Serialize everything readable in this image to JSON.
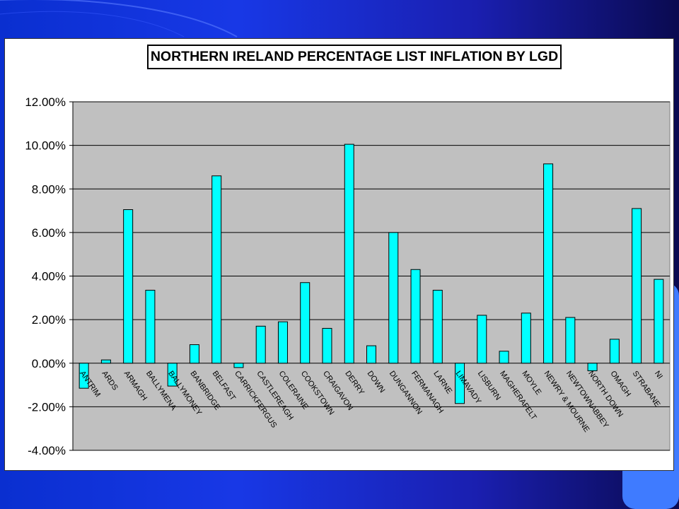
{
  "slide": {
    "background_colors": [
      "#0a2fd0",
      "#1838e6",
      "#0a0a50"
    ],
    "accent_color": "#3f7bff"
  },
  "chart_data": {
    "type": "bar",
    "title": "NORTHERN IRELAND PERCENTAGE LIST INFLATION BY LGD",
    "xlabel": "",
    "ylabel": "",
    "ylim": [
      -4,
      12
    ],
    "yticks": [
      -4,
      -2,
      0,
      2,
      4,
      6,
      8,
      10,
      12
    ],
    "ytick_labels": [
      "-4.00%",
      "-2.00%",
      "0.00%",
      "2.00%",
      "4.00%",
      "6.00%",
      "8.00%",
      "10.00%",
      "12.00%"
    ],
    "grid": true,
    "plot_background": "#c0c0c0",
    "bar_color": "#00ffff",
    "categories": [
      "ANTRIM",
      "ARDS",
      "ARMAGH",
      "BALLYMENA",
      "BALLYMONEY",
      "BANBRIDGE",
      "BELFAST",
      "CARRICKFERGUS",
      "CASTLEREAGH",
      "COLERAINE",
      "COOKSTOWN",
      "CRAIGAVON",
      "DERRY",
      "DOWN",
      "DUNGANNON",
      "FERMANAGH",
      "LARNE",
      "LIMAVADY",
      "LISBURN",
      "MAGHERAFELT",
      "MOYLE",
      "NEWRY & MOURNE",
      "NEWTOWNABBEY",
      "NORTH DOWN",
      "OMAGH",
      "STRABANE",
      "NI"
    ],
    "values": [
      -1.15,
      0.15,
      7.05,
      3.35,
      -1.05,
      0.85,
      8.6,
      -0.2,
      1.7,
      1.9,
      3.7,
      1.6,
      10.05,
      0.8,
      6.0,
      4.3,
      3.35,
      -1.85,
      2.2,
      0.55,
      2.3,
      9.15,
      2.1,
      -0.35,
      1.1,
      7.1,
      3.85
    ]
  }
}
